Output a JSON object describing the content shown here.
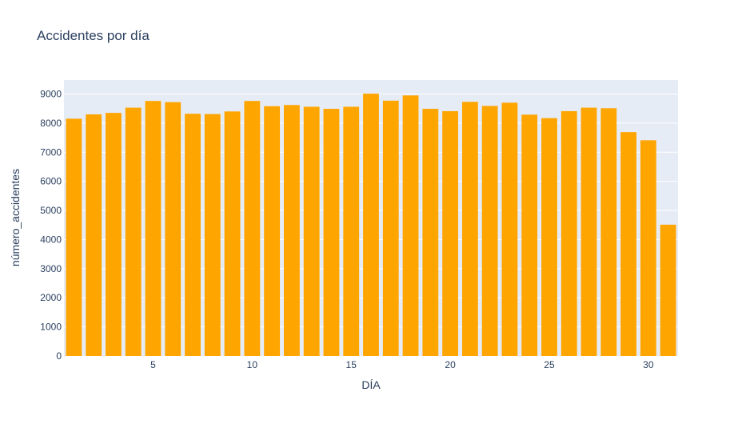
{
  "chart_data": {
    "type": "bar",
    "title": "Accidentes por día",
    "xlabel": "DÍA",
    "ylabel": "número_accidentes",
    "x": [
      1,
      2,
      3,
      4,
      5,
      6,
      7,
      8,
      9,
      10,
      11,
      12,
      13,
      14,
      15,
      16,
      17,
      18,
      19,
      20,
      21,
      22,
      23,
      24,
      25,
      26,
      27,
      28,
      29,
      30,
      31
    ],
    "values": [
      8150,
      8300,
      8350,
      8530,
      8760,
      8720,
      8320,
      8310,
      8400,
      8760,
      8580,
      8620,
      8560,
      8490,
      8560,
      9010,
      8770,
      8950,
      8490,
      8410,
      8730,
      8590,
      8700,
      8290,
      8170,
      8410,
      8530,
      8510,
      7690,
      7410,
      4510
    ],
    "xticks": [
      5,
      10,
      15,
      20,
      25,
      30
    ],
    "xlim": [
      0.5,
      31.5
    ],
    "yticks": [
      0,
      1000,
      2000,
      3000,
      4000,
      5000,
      6000,
      7000,
      8000,
      9000
    ],
    "ylim": [
      0,
      9480
    ],
    "bar_color": "#FFA500",
    "plot_background": "#E5ECF6",
    "grid": true,
    "legend": false
  }
}
